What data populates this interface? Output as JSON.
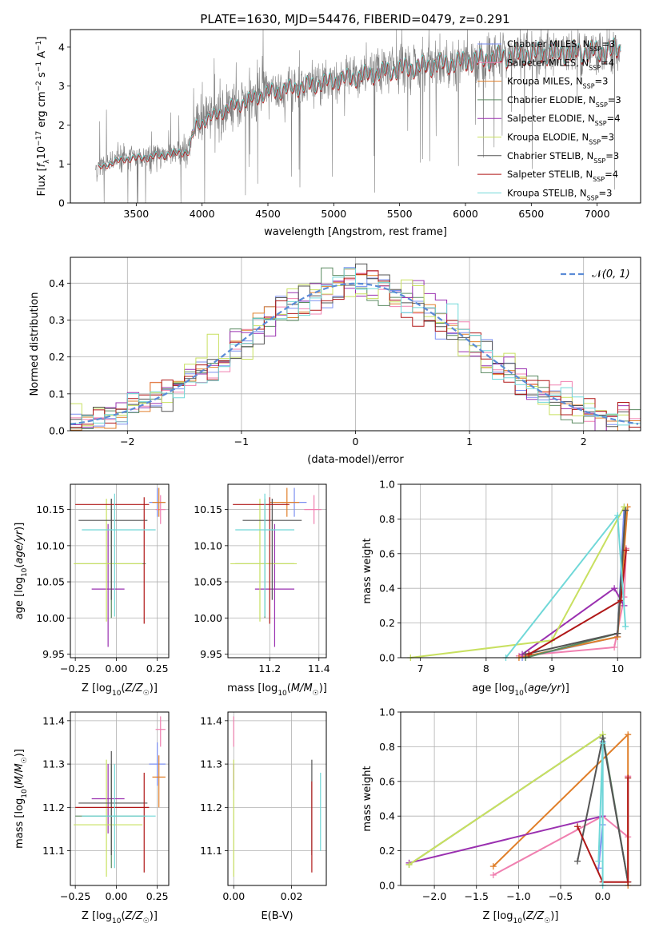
{
  "figure_title": "PLATE=1630, MJD=54476, FIBERID=0479, z=0.291",
  "colors": {
    "Chabrier MILES": "#7b8ff0",
    "Salpeter MILES": "#f080b0",
    "Kroupa MILES": "#e07f2a",
    "Chabrier ELODIE": "#5a8a60",
    "Salpeter ELODIE": "#9a30b0",
    "Kroupa ELODIE": "#c8e060",
    "Chabrier STELIB": "#555555",
    "Salpeter STELIB": "#b01818",
    "Kroupa STELIB": "#70d8d8",
    "data": "#808080",
    "normal_curve": "#5b8bd6",
    "grid": "#b0b0b0"
  },
  "chart_data": [
    {
      "id": "spectrum",
      "type": "line",
      "title": "PLATE=1630, MJD=54476, FIBERID=0479, z=0.291",
      "xlabel": "wavelength [Angstrom, rest frame]",
      "ylabel": "Flux [f_λ 10^-17 erg cm^-2 s^-1 A^-1]",
      "xlim": [
        3000,
        7330
      ],
      "ylim": [
        0,
        4.45
      ],
      "xticks": [
        3500,
        4000,
        4500,
        5000,
        5500,
        6000,
        6500,
        7000
      ],
      "yticks": [
        0,
        1,
        2,
        3,
        4
      ],
      "grid": false,
      "legend_position": "upper right",
      "x_range_data": [
        3190,
        7180
      ],
      "legend": [
        {
          "model": "Chabrier MILES",
          "label": "Chabrier MILES, N",
          "sub": "SSP",
          "tail": "=3"
        },
        {
          "model": "Salpeter MILES",
          "label": "Salpeter MILES, N",
          "sub": "SSP",
          "tail": "=4"
        },
        {
          "model": "Kroupa MILES",
          "label": "Kroupa MILES, N",
          "sub": "SSP",
          "tail": "=3"
        },
        {
          "model": "Chabrier ELODIE",
          "label": "Chabrier ELODIE, N",
          "sub": "SSP",
          "tail": "=3"
        },
        {
          "model": "Salpeter ELODIE",
          "label": "Salpeter ELODIE, N",
          "sub": "SSP",
          "tail": "=4"
        },
        {
          "model": "Kroupa ELODIE",
          "label": "Kroupa ELODIE, N",
          "sub": "SSP",
          "tail": "=3"
        },
        {
          "model": "Chabrier STELIB",
          "label": "Chabrier STELIB, N",
          "sub": "SSP",
          "tail": "=3"
        },
        {
          "model": "Salpeter STELIB",
          "label": "Salpeter STELIB, N",
          "sub": "SSP",
          "tail": "=4"
        },
        {
          "model": "Kroupa STELIB",
          "label": "Kroupa STELIB, N",
          "sub": "SSP",
          "tail": "=3"
        }
      ],
      "continuum_nodes": [
        [
          3190,
          0.9
        ],
        [
          3400,
          1.15
        ],
        [
          3600,
          1.2
        ],
        [
          3900,
          1.35
        ],
        [
          3950,
          2.0
        ],
        [
          4200,
          2.45
        ],
        [
          4500,
          2.85
        ],
        [
          5000,
          3.15
        ],
        [
          5500,
          3.45
        ],
        [
          6000,
          3.65
        ],
        [
          6500,
          3.85
        ],
        [
          7000,
          3.9
        ],
        [
          7180,
          3.95
        ]
      ]
    },
    {
      "id": "residual_hist",
      "type": "histogram",
      "xlabel": "(data-model)/error",
      "ylabel": "Normed distribution",
      "xlim": [
        -2.5,
        2.5
      ],
      "ylim": [
        0,
        0.47
      ],
      "xticks": [
        -2,
        -1,
        0,
        1,
        2
      ],
      "yticks": [
        0.0,
        0.1,
        0.2,
        0.3,
        0.4
      ],
      "grid": true,
      "legend_position": "upper right",
      "legend": [
        "N(0,1)"
      ],
      "bin_width": 0.1
    },
    {
      "id": "age_vs_Z",
      "type": "scatter",
      "xlabel": "Z [log10(Z/Z☉)]",
      "ylabel": "age  [log10(age/yr)]",
      "xlim": [
        -0.28,
        0.32
      ],
      "ylim": [
        9.945,
        10.185
      ],
      "xticks": [
        -0.25,
        0.0,
        0.25
      ],
      "xtick_labels": [
        "−0.25",
        "0.00",
        "0.25"
      ],
      "yticks": [
        9.95,
        10.0,
        10.05,
        10.1,
        10.15
      ],
      "grid": true,
      "points": [
        {
          "model": "Chabrier MILES",
          "x": 0.25,
          "y": 10.16,
          "xerr": [
            0.05,
            0.05
          ],
          "yerr": [
            0.02,
            0.02
          ]
        },
        {
          "model": "Salpeter MILES",
          "x": 0.27,
          "y": 10.15,
          "xerr": [
            0.03,
            0.03
          ],
          "yerr": [
            0.02,
            0.02
          ]
        },
        {
          "model": "Kroupa MILES",
          "x": 0.26,
          "y": 10.16,
          "xerr": [
            0.04,
            0.04
          ],
          "yerr": [
            0.02,
            0.02
          ]
        },
        {
          "model": "Chabrier ELODIE",
          "x": -0.03,
          "y": 10.075,
          "xerr": [
            0.22,
            0.21
          ],
          "yerr": [
            0.075,
            0.09
          ]
        },
        {
          "model": "Salpeter ELODIE",
          "x": -0.05,
          "y": 10.04,
          "xerr": [
            0.1,
            0.1
          ],
          "yerr": [
            0.08,
            0.09
          ]
        },
        {
          "model": "Kroupa ELODIE",
          "x": -0.06,
          "y": 10.075,
          "xerr": [
            0.2,
            0.22
          ],
          "yerr": [
            0.08,
            0.09
          ]
        },
        {
          "model": "Chabrier STELIB",
          "x": -0.03,
          "y": 10.135,
          "xerr": [
            0.2,
            0.22
          ],
          "yerr": [
            0.11,
            0.03
          ]
        },
        {
          "model": "Salpeter STELIB",
          "x": 0.17,
          "y": 10.157,
          "xerr": [
            0.42,
            0.03
          ],
          "yerr": [
            0.165,
            0.01
          ]
        },
        {
          "model": "Kroupa STELIB",
          "x": -0.01,
          "y": 10.122,
          "xerr": [
            0.2,
            0.25
          ],
          "yerr": [
            0.12,
            0.05
          ]
        }
      ]
    },
    {
      "id": "age_vs_mass",
      "type": "scatter",
      "xlabel": "mass [log10(M/M☉)]",
      "ylabel": "",
      "xlim": [
        11.03,
        11.43
      ],
      "ylim": [
        9.945,
        10.185
      ],
      "xticks": [
        11.2,
        11.4
      ],
      "yticks": [
        9.95,
        10.0,
        10.05,
        10.1,
        10.15
      ],
      "grid": true,
      "points": [
        {
          "model": "Chabrier MILES",
          "x": 11.3,
          "y": 10.16,
          "xerr": [
            0.05,
            0.05
          ],
          "yerr": [
            0.02,
            0.02
          ]
        },
        {
          "model": "Salpeter MILES",
          "x": 11.38,
          "y": 10.15,
          "xerr": [
            0.04,
            0.03
          ],
          "yerr": [
            0.02,
            0.02
          ]
        },
        {
          "model": "Kroupa MILES",
          "x": 11.27,
          "y": 10.16,
          "xerr": [
            0.07,
            0.05
          ],
          "yerr": [
            0.02,
            0.02
          ]
        },
        {
          "model": "Chabrier ELODIE",
          "x": 11.18,
          "y": 10.075,
          "xerr": [
            0.12,
            0.12
          ],
          "yerr": [
            0.075,
            0.09
          ]
        },
        {
          "model": "Salpeter ELODIE",
          "x": 11.22,
          "y": 10.04,
          "xerr": [
            0.08,
            0.08
          ],
          "yerr": [
            0.08,
            0.09
          ]
        },
        {
          "model": "Kroupa ELODIE",
          "x": 11.16,
          "y": 10.075,
          "xerr": [
            0.12,
            0.15
          ],
          "yerr": [
            0.08,
            0.09
          ]
        },
        {
          "model": "Chabrier STELIB",
          "x": 11.21,
          "y": 10.135,
          "xerr": [
            0.12,
            0.12
          ],
          "yerr": [
            0.11,
            0.03
          ]
        },
        {
          "model": "Salpeter STELIB",
          "x": 11.2,
          "y": 10.157,
          "xerr": [
            0.15,
            0.08
          ],
          "yerr": [
            0.165,
            0.01
          ]
        },
        {
          "model": "Kroupa STELIB",
          "x": 11.18,
          "y": 10.122,
          "xerr": [
            0.12,
            0.12
          ],
          "yerr": [
            0.12,
            0.05
          ]
        }
      ]
    },
    {
      "id": "weight_vs_age",
      "type": "line",
      "xlabel": "age  [log10(age/yr)]",
      "ylabel": "mass weight",
      "xlim": [
        6.7,
        10.35
      ],
      "ylim": [
        0,
        1.0
      ],
      "xticks": [
        7,
        8,
        9,
        10
      ],
      "yticks": [
        0.0,
        0.2,
        0.4,
        0.6,
        0.8,
        1.0
      ],
      "grid": true,
      "series": [
        {
          "model": "Chabrier MILES",
          "points": [
            [
              8.55,
              0.0
            ],
            [
              10.0,
              0.12
            ],
            [
              10.1,
              0.87
            ]
          ]
        },
        {
          "model": "Salpeter MILES",
          "points": [
            [
              8.5,
              0.01
            ],
            [
              9.95,
              0.06
            ],
            [
              10.1,
              0.35
            ],
            [
              10.13,
              0.63
            ]
          ]
        },
        {
          "model": "Kroupa MILES",
          "points": [
            [
              8.5,
              0.0
            ],
            [
              10.0,
              0.12
            ],
            [
              10.15,
              0.87
            ]
          ]
        },
        {
          "model": "Chabrier ELODIE",
          "points": [
            [
              8.6,
              0.0
            ],
            [
              10.0,
              0.14
            ],
            [
              10.12,
              0.85
            ]
          ]
        },
        {
          "model": "Salpeter ELODIE",
          "points": [
            [
              8.55,
              0.02
            ],
            [
              9.95,
              0.4
            ],
            [
              10.1,
              0.3
            ]
          ]
        },
        {
          "model": "Kroupa ELODIE",
          "points": [
            [
              6.85,
              0.0
            ],
            [
              9.0,
              0.1
            ],
            [
              10.1,
              0.87
            ]
          ]
        },
        {
          "model": "Chabrier STELIB",
          "points": [
            [
              8.6,
              0.02
            ],
            [
              10.0,
              0.14
            ],
            [
              10.12,
              0.85
            ]
          ]
        },
        {
          "model": "Salpeter STELIB",
          "points": [
            [
              8.65,
              0.02
            ],
            [
              10.05,
              0.33
            ],
            [
              10.13,
              0.62
            ]
          ]
        },
        {
          "model": "Kroupa STELIB",
          "points": [
            [
              8.3,
              0.0
            ],
            [
              10.0,
              0.82
            ],
            [
              10.12,
              0.18
            ]
          ]
        }
      ]
    },
    {
      "id": "mass_vs_Z",
      "type": "scatter",
      "xlabel": "Z [log10(Z/Z☉)]",
      "ylabel": "mass [log10(M/M☉)]",
      "xlim": [
        -0.28,
        0.32
      ],
      "ylim": [
        11.02,
        11.42
      ],
      "xticks": [
        -0.25,
        0.0,
        0.25
      ],
      "xtick_labels": [
        "−0.25",
        "0.00",
        "0.25"
      ],
      "yticks": [
        11.1,
        11.2,
        11.3,
        11.4
      ],
      "grid": true,
      "points": [
        {
          "model": "Chabrier MILES",
          "x": 0.25,
          "y": 11.3,
          "xerr": [
            0.05,
            0.05
          ],
          "yerr": [
            0.05,
            0.05
          ]
        },
        {
          "model": "Salpeter MILES",
          "x": 0.27,
          "y": 11.38,
          "xerr": [
            0.03,
            0.03
          ],
          "yerr": [
            0.04,
            0.03
          ]
        },
        {
          "model": "Kroupa MILES",
          "x": 0.26,
          "y": 11.27,
          "xerr": [
            0.04,
            0.04
          ],
          "yerr": [
            0.07,
            0.05
          ]
        },
        {
          "model": "Chabrier ELODIE",
          "x": -0.03,
          "y": 11.18,
          "xerr": [
            0.22,
            0.21
          ],
          "yerr": [
            0.12,
            0.12
          ]
        },
        {
          "model": "Salpeter ELODIE",
          "x": -0.05,
          "y": 11.22,
          "xerr": [
            0.1,
            0.1
          ],
          "yerr": [
            0.08,
            0.08
          ]
        },
        {
          "model": "Kroupa ELODIE",
          "x": -0.06,
          "y": 11.16,
          "xerr": [
            0.2,
            0.22
          ],
          "yerr": [
            0.12,
            0.15
          ]
        },
        {
          "model": "Chabrier STELIB",
          "x": -0.03,
          "y": 11.21,
          "xerr": [
            0.2,
            0.22
          ],
          "yerr": [
            0.12,
            0.12
          ]
        },
        {
          "model": "Salpeter STELIB",
          "x": 0.17,
          "y": 11.2,
          "xerr": [
            0.42,
            0.03
          ],
          "yerr": [
            0.15,
            0.08
          ]
        },
        {
          "model": "Kroupa STELIB",
          "x": -0.01,
          "y": 11.18,
          "xerr": [
            0.2,
            0.25
          ],
          "yerr": [
            0.12,
            0.12
          ]
        }
      ]
    },
    {
      "id": "mass_vs_EBV",
      "type": "scatter",
      "xlabel": "E(B-V)",
      "ylabel": "",
      "xlim": [
        -0.002,
        0.032
      ],
      "ylim": [
        11.02,
        11.42
      ],
      "xticks": [
        0.0,
        0.02
      ],
      "yticks": [
        11.1,
        11.2,
        11.3,
        11.4
      ],
      "grid": true,
      "points": [
        {
          "model": "Salpeter MILES",
          "x": 0.0,
          "y": 11.38,
          "xerr": [
            0,
            0
          ],
          "yerr": [
            0.04,
            0.03
          ]
        },
        {
          "model": "Salpeter ELODIE",
          "x": 0.0,
          "y": 11.27,
          "xerr": [
            0,
            0
          ],
          "yerr": [
            0.03,
            0.03
          ]
        },
        {
          "model": "Kroupa ELODIE",
          "x": 0.0,
          "y": 11.16,
          "xerr": [
            0,
            0
          ],
          "yerr": [
            0.12,
            0.15
          ]
        },
        {
          "model": "Chabrier STELIB",
          "x": 0.027,
          "y": 11.21,
          "xerr": [
            0,
            0
          ],
          "yerr": [
            0.12,
            0.1
          ]
        },
        {
          "model": "Salpeter STELIB",
          "x": 0.027,
          "y": 11.15,
          "xerr": [
            0,
            0
          ],
          "yerr": [
            0.1,
            0.11
          ]
        },
        {
          "model": "Kroupa STELIB",
          "x": 0.03,
          "y": 11.18,
          "xerr": [
            0,
            0
          ],
          "yerr": [
            0.08,
            0.1
          ]
        }
      ]
    },
    {
      "id": "weight_vs_Z",
      "type": "line",
      "xlabel": "Z [log10(Z/Z☉)]",
      "ylabel": "mass weight",
      "xlim": [
        -2.4,
        0.45
      ],
      "ylim": [
        0,
        1.0
      ],
      "xticks": [
        -2.0,
        -1.5,
        -1.0,
        -0.5,
        0.0
      ],
      "xtick_labels": [
        "−2.0",
        "−1.5",
        "−1.0",
        "−0.5",
        "0.0"
      ],
      "yticks": [
        0.0,
        0.2,
        0.4,
        0.6,
        0.8,
        1.0
      ],
      "grid": true,
      "series": [
        {
          "model": "Chabrier MILES",
          "points": [
            [
              -0.05,
              0.1
            ],
            [
              0.0,
              0.35
            ],
            [
              0.0,
              0.83
            ]
          ]
        },
        {
          "model": "Salpeter MILES",
          "points": [
            [
              -1.3,
              0.06
            ],
            [
              0.0,
              0.4
            ],
            [
              0.3,
              0.28
            ],
            [
              0.3,
              0.63
            ]
          ]
        },
        {
          "model": "Kroupa MILES",
          "points": [
            [
              -1.3,
              0.11
            ],
            [
              0.3,
              0.87
            ],
            [
              0.3,
              0.0
            ]
          ]
        },
        {
          "model": "Chabrier ELODIE",
          "points": [
            [
              -2.3,
              0.12
            ],
            [
              0.0,
              0.87
            ],
            [
              0.3,
              0.02
            ]
          ]
        },
        {
          "model": "Salpeter ELODIE",
          "points": [
            [
              -2.3,
              0.13
            ],
            [
              0.0,
              0.4
            ]
          ]
        },
        {
          "model": "Kroupa ELODIE",
          "points": [
            [
              -2.3,
              0.12
            ],
            [
              0.0,
              0.87
            ]
          ]
        },
        {
          "model": "Chabrier STELIB",
          "points": [
            [
              -0.3,
              0.14
            ],
            [
              0.0,
              0.85
            ],
            [
              0.3,
              0.02
            ]
          ]
        },
        {
          "model": "Salpeter STELIB",
          "points": [
            [
              -0.3,
              0.34
            ],
            [
              0.0,
              0.02
            ],
            [
              0.3,
              0.02
            ],
            [
              0.3,
              0.62
            ]
          ]
        },
        {
          "model": "Kroupa STELIB",
          "points": [
            [
              -0.05,
              0.14
            ],
            [
              0.0,
              0.82
            ],
            [
              0.0,
              0.0
            ]
          ]
        }
      ]
    }
  ]
}
